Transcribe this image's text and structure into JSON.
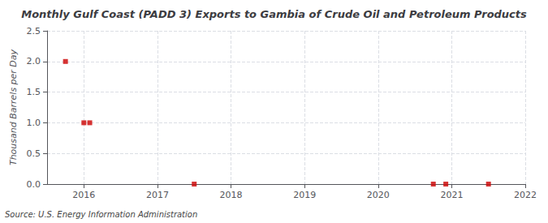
{
  "chart_data": {
    "type": "scatter",
    "title": "Monthly Gulf Coast (PADD 3) Exports to Gambia of Crude Oil and Petroleum Products",
    "ylabel": "Thousand Barrels per Day",
    "source": "Source: U.S. Energy Information Administration",
    "x": [
      2015.75,
      2016.0,
      2016.08,
      2017.5,
      2020.75,
      2020.92,
      2021.5
    ],
    "values": [
      2.0,
      1.0,
      1.0,
      0.0,
      0.0,
      0.0,
      0.0
    ],
    "color": "#cc0000",
    "marker": "square",
    "xlim": [
      2015.5,
      2022.0
    ],
    "ylim": [
      0.0,
      2.5
    ],
    "xticks": [
      2016,
      2017,
      2018,
      2019,
      2020,
      2021,
      2022
    ],
    "yticks": [
      {
        "value": 0.0,
        "label": "0.0"
      },
      0.5,
      {
        "value": 1.0,
        "label": "1.0"
      },
      1.5,
      {
        "value": 2.0,
        "label": "2.0"
      },
      2.5
    ],
    "grid": true
  }
}
